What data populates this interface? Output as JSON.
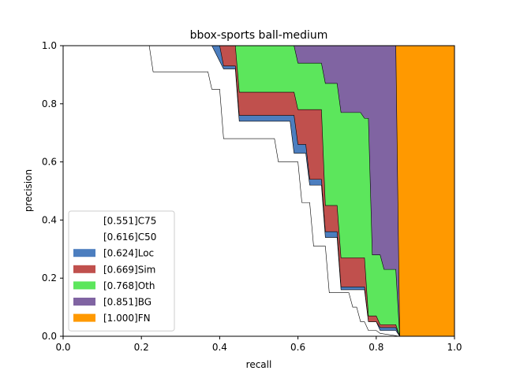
{
  "chart_data": {
    "type": "area",
    "title": "bbox-sports ball-medium",
    "xlabel": "recall",
    "ylabel": "precision",
    "xlim": [
      0,
      1
    ],
    "ylim": [
      0,
      1
    ],
    "xticks": [
      "0.0",
      "0.2",
      "0.4",
      "0.6",
      "0.8",
      "1.0"
    ],
    "yticks": [
      "0.0",
      "0.2",
      "0.4",
      "0.6",
      "0.8",
      "1.0"
    ],
    "grid": false,
    "legend_position": "lower-left",
    "series": [
      {
        "name": "[0.551]C75",
        "color": "#ffffff",
        "points": [
          [
            0,
            1
          ],
          [
            0.22,
            1
          ],
          [
            0.23,
            0.91
          ],
          [
            0.37,
            0.91
          ],
          [
            0.38,
            0.85
          ],
          [
            0.4,
            0.85
          ],
          [
            0.41,
            0.68
          ],
          [
            0.54,
            0.68
          ],
          [
            0.55,
            0.6
          ],
          [
            0.6,
            0.6
          ],
          [
            0.61,
            0.46
          ],
          [
            0.63,
            0.46
          ],
          [
            0.64,
            0.31
          ],
          [
            0.67,
            0.31
          ],
          [
            0.68,
            0.15
          ],
          [
            0.73,
            0.15
          ],
          [
            0.74,
            0.1
          ],
          [
            0.75,
            0.1
          ],
          [
            0.76,
            0.05
          ],
          [
            0.77,
            0.05
          ],
          [
            0.78,
            0.02
          ],
          [
            0.8,
            0.02
          ],
          [
            0.81,
            0.01
          ],
          [
            0.86,
            0
          ],
          [
            1,
            0
          ]
        ]
      },
      {
        "name": "[0.616]C50",
        "color": "#ffffff",
        "points": [
          [
            0,
            1
          ],
          [
            0.38,
            1
          ],
          [
            0.41,
            0.92
          ],
          [
            0.44,
            0.92
          ],
          [
            0.45,
            0.74
          ],
          [
            0.58,
            0.74
          ],
          [
            0.59,
            0.63
          ],
          [
            0.62,
            0.63
          ],
          [
            0.63,
            0.52
          ],
          [
            0.66,
            0.52
          ],
          [
            0.67,
            0.34
          ],
          [
            0.7,
            0.34
          ],
          [
            0.71,
            0.16
          ],
          [
            0.77,
            0.16
          ],
          [
            0.78,
            0.05
          ],
          [
            0.8,
            0.05
          ],
          [
            0.81,
            0.02
          ],
          [
            0.85,
            0.02
          ],
          [
            0.86,
            0
          ],
          [
            1,
            0
          ]
        ]
      },
      {
        "name": "[0.624]Loc",
        "color": "#4c7ebf",
        "points": [
          [
            0,
            1
          ],
          [
            0.4,
            1
          ],
          [
            0.41,
            0.93
          ],
          [
            0.44,
            0.93
          ],
          [
            0.45,
            0.76
          ],
          [
            0.59,
            0.76
          ],
          [
            0.6,
            0.66
          ],
          [
            0.62,
            0.66
          ],
          [
            0.63,
            0.54
          ],
          [
            0.66,
            0.54
          ],
          [
            0.67,
            0.36
          ],
          [
            0.7,
            0.36
          ],
          [
            0.71,
            0.17
          ],
          [
            0.77,
            0.17
          ],
          [
            0.78,
            0.05
          ],
          [
            0.8,
            0.05
          ],
          [
            0.81,
            0.03
          ],
          [
            0.85,
            0.03
          ],
          [
            0.86,
            0
          ],
          [
            1,
            0
          ]
        ]
      },
      {
        "name": "[0.669]Sim",
        "color": "#c0504d",
        "points": [
          [
            0,
            1
          ],
          [
            0.44,
            1
          ],
          [
            0.45,
            0.84
          ],
          [
            0.59,
            0.84
          ],
          [
            0.6,
            0.78
          ],
          [
            0.66,
            0.78
          ],
          [
            0.67,
            0.45
          ],
          [
            0.7,
            0.45
          ],
          [
            0.71,
            0.27
          ],
          [
            0.77,
            0.27
          ],
          [
            0.78,
            0.07
          ],
          [
            0.8,
            0.07
          ],
          [
            0.81,
            0.04
          ],
          [
            0.85,
            0.04
          ],
          [
            0.86,
            0
          ],
          [
            1,
            0
          ]
        ]
      },
      {
        "name": "[0.768]Oth",
        "color": "#5ce65c",
        "points": [
          [
            0,
            1
          ],
          [
            0.59,
            1
          ],
          [
            0.6,
            0.94
          ],
          [
            0.66,
            0.94
          ],
          [
            0.67,
            0.87
          ],
          [
            0.7,
            0.87
          ],
          [
            0.71,
            0.77
          ],
          [
            0.76,
            0.77
          ],
          [
            0.77,
            0.75
          ],
          [
            0.78,
            0.75
          ],
          [
            0.79,
            0.28
          ],
          [
            0.81,
            0.28
          ],
          [
            0.82,
            0.23
          ],
          [
            0.85,
            0.23
          ],
          [
            0.86,
            0
          ],
          [
            1,
            0
          ]
        ]
      },
      {
        "name": "[0.851]BG",
        "color": "#8064a2",
        "points": [
          [
            0,
            1
          ],
          [
            0.85,
            1
          ],
          [
            0.86,
            0
          ],
          [
            1,
            0
          ]
        ]
      },
      {
        "name": "[1.000]FN",
        "color": "#ff9900",
        "points": [
          [
            0,
            1
          ],
          [
            1,
            1
          ],
          [
            1,
            0
          ]
        ]
      }
    ]
  }
}
